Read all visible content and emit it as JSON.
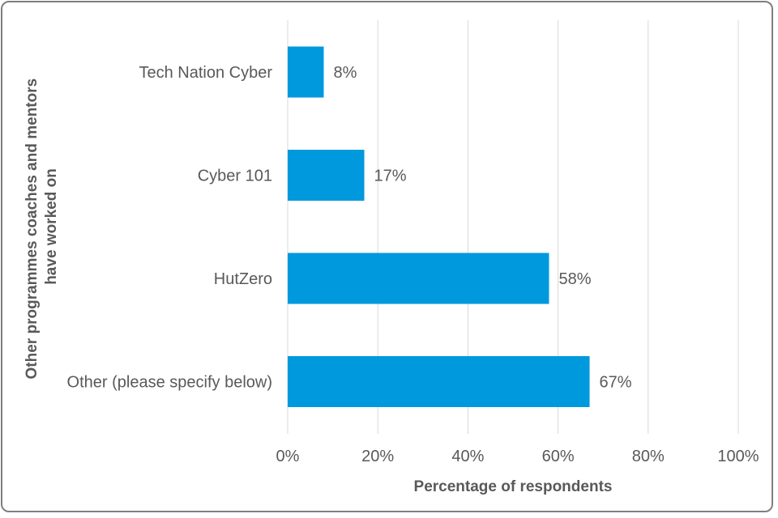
{
  "chart_data": {
    "type": "bar",
    "orientation": "horizontal",
    "categories": [
      "Tech Nation Cyber",
      "Cyber 101",
      "HutZero",
      "Other (please specify below)"
    ],
    "values": [
      8,
      17,
      58,
      67
    ],
    "value_labels": [
      "8%",
      "17%",
      "58%",
      "67%"
    ],
    "xlabel": "Percentage of respondents",
    "ylabel_lines": [
      "Other programmes coaches and mentors",
      "have worked on"
    ],
    "xlim": [
      0,
      100
    ],
    "xticks": [
      0,
      20,
      40,
      60,
      80,
      100
    ],
    "xtick_labels": [
      "0%",
      "20%",
      "40%",
      "60%",
      "80%",
      "100%"
    ],
    "grid": "vertical",
    "legend": "none",
    "colors": {
      "bar": "#0099dd",
      "text": "#595959",
      "grid": "#d9d9d9",
      "border": "#7f7f7f"
    }
  }
}
